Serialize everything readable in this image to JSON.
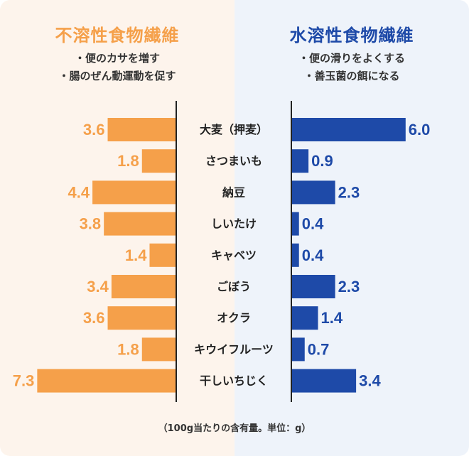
{
  "colors": {
    "insoluble": "#f5a04a",
    "soluble": "#1e4aa8",
    "left_bg": "#fdf4ec",
    "right_bg": "#eef3fa"
  },
  "left": {
    "title": "不溶性食物繊維",
    "bullets": [
      "・便のカサを増す",
      "・腸のぜん動運動を促す"
    ]
  },
  "right": {
    "title": "水溶性食物繊維",
    "bullets": [
      "・便の滑りをよくする",
      "・善玉菌の餌になる"
    ]
  },
  "footnote": "（100g当たりの含有量。単位：g）",
  "chart_data": {
    "type": "bar",
    "orientation": "horizontal",
    "layout": "back-to-back",
    "categories": [
      "大麦（押麦）",
      "さつまいも",
      "納豆",
      "しいたけ",
      "キャベツ",
      "ごぼう",
      "オクラ",
      "キウイフルーツ",
      "干しいちじく"
    ],
    "series": [
      {
        "name": "不溶性食物繊維",
        "side": "left",
        "values": [
          3.6,
          1.8,
          4.4,
          3.8,
          1.4,
          3.4,
          3.6,
          1.8,
          7.3
        ]
      },
      {
        "name": "水溶性食物繊維",
        "side": "right",
        "values": [
          6.0,
          0.9,
          2.3,
          0.4,
          0.4,
          2.3,
          1.4,
          0.7,
          3.4
        ]
      }
    ],
    "xlim": [
      0,
      7.3
    ],
    "grid": false
  }
}
